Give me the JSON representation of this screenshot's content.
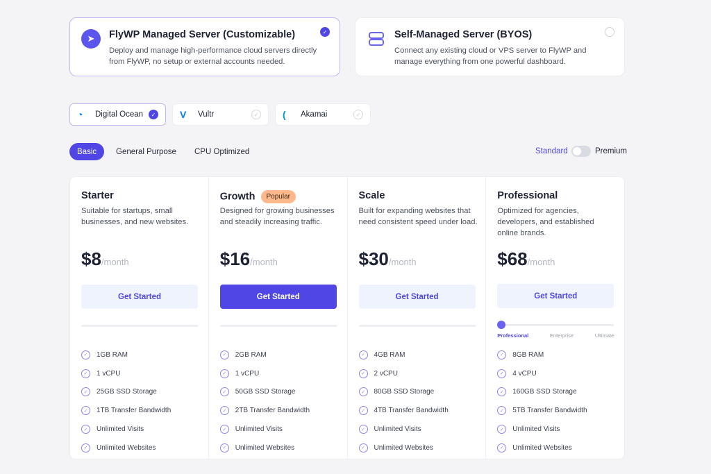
{
  "server_types": [
    {
      "title": "FlyWP Managed Server (Customizable)",
      "description": "Deploy and manage high-performance cloud servers directly from FlyWP, no setup or external accounts needed.",
      "selected": true
    },
    {
      "title": "Self-Managed Server (BYOS)",
      "description": "Connect any existing cloud or VPS server to FlyWP and manage everything from one powerful dashboard.",
      "selected": false
    }
  ],
  "providers": [
    {
      "label": "Digital Ocean",
      "selected": true,
      "icon": "digitalocean-logo",
      "color": "#0080ff"
    },
    {
      "label": "Vultr",
      "selected": false,
      "icon": "vultr-logo",
      "color": "#007bfc"
    },
    {
      "label": "Akamai",
      "selected": false,
      "icon": "akamai-logo",
      "color": "#0096d6"
    }
  ],
  "tabs": [
    {
      "label": "Basic",
      "active": true
    },
    {
      "label": "General Purpose"
    },
    {
      "label": "CPU Optimized"
    }
  ],
  "tier_toggle": {
    "left": "Standard",
    "right": "Premium",
    "value": "Standard"
  },
  "plans": [
    {
      "name": "Starter",
      "description": "Suitable for startups, small businesses, and new websites.",
      "price": "$8",
      "period": "/month",
      "cta": "Get Started",
      "features": [
        "1GB RAM",
        "1 vCPU",
        "25GB SSD Storage",
        "1TB Transfer Bandwidth",
        "Unlimited Visits",
        "Unlimited Websites"
      ]
    },
    {
      "name": "Growth",
      "badge": "Popular",
      "description": "Designed for growing businesses and steadily increasing traffic.",
      "price": "$16",
      "period": "/month",
      "cta": "Get Started",
      "primary": true,
      "features": [
        "2GB RAM",
        "1 vCPU",
        "50GB SSD Storage",
        "2TB Transfer Bandwidth",
        "Unlimited Visits",
        "Unlimited Websites"
      ]
    },
    {
      "name": "Scale",
      "description": "Built for expanding websites that need consistent speed under load.",
      "price": "$30",
      "period": "/month",
      "cta": "Get Started",
      "features": [
        "4GB RAM",
        "2 vCPU",
        "80GB SSD Storage",
        "4TB Transfer Bandwidth",
        "Unlimited Visits",
        "Unlimited Websites"
      ]
    },
    {
      "name": "Professional",
      "description": "Optimized for agencies, developers, and established online brands.",
      "price": "$68",
      "period": "/month",
      "cta": "Get Started",
      "slider": {
        "options": [
          "Professional",
          "Enterprise",
          "Ultimate"
        ],
        "selected": "Professional"
      },
      "features": [
        "8GB RAM",
        "4 vCPU",
        "160GB SSD Storage",
        "5TB Transfer Bandwidth",
        "Unlimited Visits",
        "Unlimited Websites"
      ]
    }
  ],
  "colors": {
    "accent": "#4f46e5",
    "badge": "#fdb88c",
    "background": "#f4f4f7"
  }
}
